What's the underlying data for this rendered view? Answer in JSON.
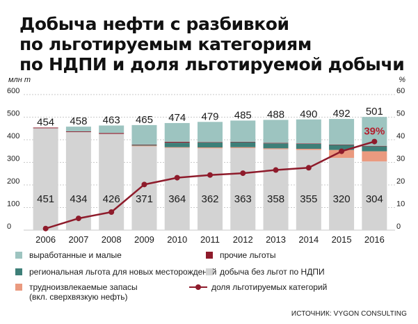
{
  "title_lines": [
    "Добыча нефти с разбивкой",
    "по льготируемым категориям",
    "по НДПИ и доля льготируемой добычи"
  ],
  "source": "ИСТОЧНИК: VYGON CONSULTING",
  "colors": {
    "base": "#d3d3d3",
    "depleted": "#9dc4c0",
    "regional": "#3e7f78",
    "hard": "#ea9a7f",
    "other": "#8e1b2b",
    "share_line": "#8e1b2b"
  },
  "legend": {
    "depleted": "выработанные и малые",
    "other": "прочие льготы",
    "regional": "региональная льгота для новых месторождений",
    "base": "добыча без льгот по НДПИ",
    "hard_line1": "трудноизвлекаемые запасы",
    "hard_line2": "(вкл. сверхвязкую нефть)",
    "share": "доля льготируемых категорий"
  },
  "chart_data": {
    "type": "bar",
    "stacked": true,
    "categories": [
      "2006",
      "2007",
      "2008",
      "2009",
      "2010",
      "2011",
      "2012",
      "2013",
      "2014",
      "2015",
      "2016"
    ],
    "left_axis": {
      "label": "млн т",
      "min": 0,
      "max": 600,
      "ticks": [
        "0",
        "100",
        "200",
        "300",
        "400",
        "500",
        "600"
      ]
    },
    "right_axis": {
      "label": "%",
      "min": 0,
      "max": 60,
      "ticks": [
        "0",
        "10",
        "20",
        "30",
        "40",
        "50",
        "60"
      ]
    },
    "totals": [
      454,
      458,
      463,
      465,
      474,
      479,
      485,
      488,
      490,
      492,
      501
    ],
    "series": [
      {
        "name": "добыча без льгот по НДПИ",
        "key": "base",
        "values": [
          451,
          434,
          426,
          371,
          364,
          362,
          363,
          358,
          355,
          320,
          304
        ]
      },
      {
        "name": "трудноизвлекаемые запасы (вкл. сверхвязкую нефть)",
        "key": "hard",
        "values": [
          0,
          0,
          0,
          3,
          3,
          4,
          4,
          4,
          5,
          35,
          45
        ]
      },
      {
        "name": "региональная льгота для новых месторождений",
        "key": "regional",
        "values": [
          0,
          0,
          0,
          3,
          20,
          22,
          22,
          22,
          22,
          22,
          22
        ]
      },
      {
        "name": "прочие льготы",
        "key": "other",
        "values": [
          3,
          3,
          4,
          2,
          4,
          2,
          2,
          2,
          2,
          2,
          2
        ]
      },
      {
        "name": "выработанные и малые",
        "key": "depleted",
        "values": [
          0,
          21,
          33,
          86,
          83,
          89,
          94,
          102,
          106,
          113,
          128
        ]
      }
    ],
    "line": {
      "name": "доля льготируемых категорий",
      "values": [
        0.7,
        5.2,
        8.0,
        20.2,
        23.2,
        24.4,
        25.2,
        26.6,
        27.6,
        34.9,
        39.2
      ],
      "last_label": "39%"
    },
    "grid": true,
    "legend_position": "bottom"
  }
}
